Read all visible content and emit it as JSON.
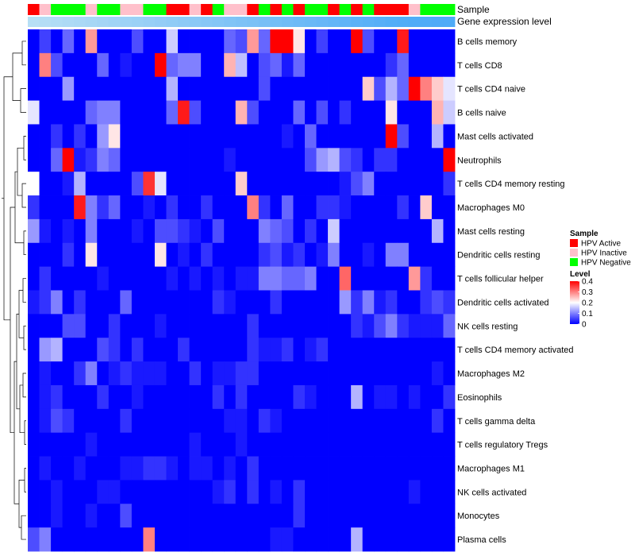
{
  "chart_data": {
    "type": "heatmap",
    "annotation_tracks": [
      "Sample",
      "Gene expression level"
    ],
    "rows": [
      "B cells memory",
      "T cells CD8",
      "T cells CD4 naive",
      "B cells naive",
      "Mast cells activated",
      "Neutrophils",
      "T cells CD4 memory resting",
      "Macrophages M0",
      "Mast cells resting",
      "Dendritic cells resting",
      "T cells follicular helper",
      "Dendritic cells activated",
      "NK cells resting",
      "T cells CD4 memory activated",
      "Macrophages M2",
      "Eosinophils",
      "T cells gamma delta",
      "T cells regulatory  Tregs",
      "Macrophages M1",
      "NK cells activated",
      "Monocytes",
      "Plasma cells"
    ],
    "sample_groups": [
      "HPV Active",
      "HPV Inactive",
      "HPV Negative",
      "HPV Negative",
      "HPV Negative",
      "HPV Inactive",
      "HPV Negative",
      "HPV Negative",
      "HPV Inactive",
      "HPV Inactive",
      "HPV Negative",
      "HPV Negative",
      "HPV Active",
      "HPV Active",
      "HPV Inactive",
      "HPV Active",
      "HPV Negative",
      "HPV Inactive",
      "HPV Inactive",
      "HPV Active",
      "HPV Negative",
      "HPV Active",
      "HPV Negative",
      "HPV Active",
      "HPV Negative",
      "HPV Negative",
      "HPV Active",
      "HPV Negative",
      "HPV Active",
      "HPV Negative",
      "HPV Active",
      "HPV Active",
      "HPV Active",
      "HPV Inactive",
      "HPV Negative",
      "HPV Negative",
      "HPV Negative"
    ],
    "gene_expression_levels": [
      0.02,
      0.05,
      0.08,
      0.11,
      0.14,
      0.17,
      0.2,
      0.23,
      0.26,
      0.29,
      0.32,
      0.35,
      0.38,
      0.41,
      0.44,
      0.47,
      0.5,
      0.53,
      0.56,
      0.59,
      0.62,
      0.65,
      0.68,
      0.71,
      0.74,
      0.77,
      0.8,
      0.83,
      0.86,
      0.89,
      0.92,
      0.95,
      0.97,
      0.98,
      0.99,
      1.0,
      1.0
    ],
    "values": [
      [
        0.0,
        0.05,
        0.0,
        0.08,
        0.0,
        0.28,
        0.0,
        0.0,
        0.0,
        0.06,
        0.0,
        0.0,
        0.16,
        0.0,
        0.0,
        0.0,
        0.0,
        0.08,
        0.06,
        0.28,
        0.08,
        0.4,
        0.4,
        0.22,
        0.0,
        0.05,
        0.0,
        0.0,
        0.4,
        0.06,
        0.0,
        0.0,
        0.38,
        0.0,
        0.0,
        0.0,
        0.0
      ],
      [
        0.0,
        0.3,
        0.06,
        0.0,
        0.0,
        0.0,
        0.08,
        0.0,
        0.02,
        0.0,
        0.0,
        0.4,
        0.08,
        0.1,
        0.1,
        0.0,
        0.0,
        0.26,
        0.15,
        0.0,
        0.06,
        0.08,
        0.02,
        0.08,
        0.0,
        0.0,
        0.0,
        0.0,
        0.0,
        0.0,
        0.0,
        0.04,
        0.08,
        0.0,
        0.0,
        0.0,
        0.0
      ],
      [
        0.0,
        0.0,
        0.0,
        0.12,
        0.0,
        0.0,
        0.0,
        0.0,
        0.0,
        0.0,
        0.0,
        0.0,
        0.14,
        0.0,
        0.0,
        0.0,
        0.0,
        0.0,
        0.0,
        0.0,
        0.06,
        0.0,
        0.0,
        0.0,
        0.0,
        0.0,
        0.0,
        0.0,
        0.0,
        0.24,
        0.06,
        0.14,
        0.08,
        0.4,
        0.3,
        0.24,
        0.18
      ],
      [
        0.18,
        0.0,
        0.0,
        0.0,
        0.0,
        0.08,
        0.1,
        0.1,
        0.0,
        0.0,
        0.0,
        0.0,
        0.08,
        0.38,
        0.06,
        0.0,
        0.0,
        0.0,
        0.26,
        0.06,
        0.0,
        0.0,
        0.0,
        0.08,
        0.0,
        0.06,
        0.0,
        0.04,
        0.0,
        0.0,
        0.0,
        0.22,
        0.0,
        0.0,
        0.0,
        0.26,
        0.16
      ],
      [
        0.0,
        0.0,
        0.04,
        0.0,
        0.04,
        0.0,
        0.12,
        0.22,
        0.0,
        0.0,
        0.0,
        0.0,
        0.0,
        0.0,
        0.0,
        0.0,
        0.0,
        0.0,
        0.0,
        0.0,
        0.0,
        0.0,
        0.02,
        0.0,
        0.08,
        0.0,
        0.0,
        0.0,
        0.0,
        0.0,
        0.0,
        0.4,
        0.06,
        0.0,
        0.0,
        0.14,
        0.0
      ],
      [
        0.0,
        0.0,
        0.08,
        0.4,
        0.02,
        0.04,
        0.1,
        0.08,
        0.0,
        0.0,
        0.0,
        0.0,
        0.0,
        0.0,
        0.0,
        0.0,
        0.0,
        0.02,
        0.0,
        0.0,
        0.0,
        0.0,
        0.0,
        0.0,
        0.06,
        0.12,
        0.14,
        0.06,
        0.04,
        0.0,
        0.04,
        0.04,
        0.0,
        0.0,
        0.0,
        0.0,
        0.4
      ],
      [
        0.2,
        0.0,
        0.0,
        0.02,
        0.14,
        0.0,
        0.0,
        0.0,
        0.0,
        0.06,
        0.36,
        0.18,
        0.0,
        0.0,
        0.0,
        0.0,
        0.0,
        0.0,
        0.24,
        0.0,
        0.0,
        0.0,
        0.0,
        0.0,
        0.0,
        0.0,
        0.0,
        0.02,
        0.06,
        0.1,
        0.0,
        0.0,
        0.0,
        0.0,
        0.0,
        0.0,
        0.04
      ],
      [
        0.04,
        0.0,
        0.0,
        0.0,
        0.38,
        0.1,
        0.04,
        0.08,
        0.0,
        0.0,
        0.02,
        0.0,
        0.04,
        0.0,
        0.0,
        0.04,
        0.0,
        0.0,
        0.0,
        0.3,
        0.04,
        0.0,
        0.08,
        0.0,
        0.0,
        0.04,
        0.04,
        0.02,
        0.0,
        0.0,
        0.0,
        0.0,
        0.04,
        0.0,
        0.24,
        0.0,
        0.0
      ],
      [
        0.12,
        0.02,
        0.0,
        0.02,
        0.0,
        0.1,
        0.0,
        0.0,
        0.0,
        0.02,
        0.0,
        0.06,
        0.06,
        0.04,
        0.02,
        0.0,
        0.06,
        0.0,
        0.0,
        0.0,
        0.1,
        0.08,
        0.06,
        0.0,
        0.04,
        0.0,
        0.16,
        0.0,
        0.0,
        0.0,
        0.0,
        0.0,
        0.0,
        0.0,
        0.0,
        0.14,
        0.0
      ],
      [
        0.0,
        0.0,
        0.0,
        0.04,
        0.0,
        0.22,
        0.0,
        0.0,
        0.0,
        0.0,
        0.0,
        0.22,
        0.0,
        0.02,
        0.0,
        0.04,
        0.0,
        0.0,
        0.0,
        0.0,
        0.04,
        0.06,
        0.02,
        0.04,
        0.0,
        0.02,
        0.1,
        0.0,
        0.0,
        0.02,
        0.0,
        0.1,
        0.1,
        0.0,
        0.0,
        0.0,
        0.0
      ],
      [
        0.0,
        0.04,
        0.0,
        0.0,
        0.0,
        0.0,
        0.02,
        0.0,
        0.0,
        0.0,
        0.0,
        0.0,
        0.02,
        0.0,
        0.02,
        0.0,
        0.02,
        0.0,
        0.02,
        0.02,
        0.1,
        0.1,
        0.08,
        0.08,
        0.1,
        0.0,
        0.0,
        0.32,
        0.0,
        0.0,
        0.0,
        0.0,
        0.0,
        0.28,
        0.04,
        0.0,
        0.0
      ],
      [
        0.02,
        0.04,
        0.1,
        0.0,
        0.04,
        0.0,
        0.0,
        0.0,
        0.08,
        0.0,
        0.0,
        0.0,
        0.0,
        0.0,
        0.0,
        0.0,
        0.04,
        0.02,
        0.0,
        0.0,
        0.0,
        0.04,
        0.0,
        0.0,
        0.0,
        0.0,
        0.0,
        0.12,
        0.04,
        0.1,
        0.02,
        0.04,
        0.0,
        0.0,
        0.04,
        0.06,
        0.04
      ],
      [
        0.0,
        0.0,
        0.0,
        0.06,
        0.06,
        0.0,
        0.0,
        0.04,
        0.0,
        0.0,
        0.0,
        0.02,
        0.0,
        0.0,
        0.0,
        0.0,
        0.0,
        0.0,
        0.0,
        0.04,
        0.0,
        0.0,
        0.0,
        0.0,
        0.0,
        0.0,
        0.0,
        0.0,
        0.04,
        0.02,
        0.06,
        0.1,
        0.04,
        0.02,
        0.02,
        0.02,
        0.08
      ],
      [
        0.0,
        0.12,
        0.14,
        0.0,
        0.0,
        0.0,
        0.06,
        0.04,
        0.0,
        0.04,
        0.0,
        0.0,
        0.0,
        0.04,
        0.0,
        0.0,
        0.0,
        0.0,
        0.0,
        0.04,
        0.02,
        0.02,
        0.04,
        0.0,
        0.02,
        0.04,
        0.0,
        0.0,
        0.0,
        0.0,
        0.0,
        0.0,
        0.0,
        0.0,
        0.0,
        0.0,
        0.0
      ],
      [
        0.0,
        0.02,
        0.0,
        0.0,
        0.04,
        0.1,
        0.0,
        0.02,
        0.04,
        0.02,
        0.02,
        0.02,
        0.0,
        0.0,
        0.04,
        0.0,
        0.02,
        0.02,
        0.04,
        0.04,
        0.0,
        0.0,
        0.0,
        0.0,
        0.0,
        0.0,
        0.0,
        0.0,
        0.0,
        0.0,
        0.0,
        0.0,
        0.0,
        0.0,
        0.0,
        0.02,
        0.0
      ],
      [
        0.0,
        0.02,
        0.04,
        0.0,
        0.0,
        0.0,
        0.04,
        0.0,
        0.0,
        0.02,
        0.0,
        0.0,
        0.0,
        0.0,
        0.0,
        0.0,
        0.04,
        0.0,
        0.04,
        0.0,
        0.0,
        0.0,
        0.0,
        0.04,
        0.02,
        0.0,
        0.0,
        0.0,
        0.14,
        0.0,
        0.02,
        0.02,
        0.0,
        0.02,
        0.0,
        0.0,
        0.04
      ],
      [
        0.0,
        0.02,
        0.06,
        0.04,
        0.0,
        0.0,
        0.0,
        0.0,
        0.04,
        0.0,
        0.0,
        0.0,
        0.0,
        0.0,
        0.0,
        0.0,
        0.0,
        0.02,
        0.02,
        0.0,
        0.04,
        0.02,
        0.0,
        0.0,
        0.0,
        0.0,
        0.0,
        0.0,
        0.0,
        0.0,
        0.0,
        0.0,
        0.0,
        0.0,
        0.0,
        0.04,
        0.0
      ],
      [
        0.0,
        0.0,
        0.0,
        0.0,
        0.0,
        0.02,
        0.0,
        0.0,
        0.0,
        0.0,
        0.0,
        0.0,
        0.0,
        0.0,
        0.02,
        0.0,
        0.0,
        0.0,
        0.02,
        0.0,
        0.0,
        0.0,
        0.0,
        0.0,
        0.0,
        0.0,
        0.0,
        0.0,
        0.0,
        0.0,
        0.0,
        0.0,
        0.0,
        0.0,
        0.0,
        0.0,
        0.0
      ],
      [
        0.0,
        0.02,
        0.0,
        0.0,
        0.02,
        0.0,
        0.0,
        0.0,
        0.02,
        0.02,
        0.04,
        0.04,
        0.02,
        0.0,
        0.02,
        0.02,
        0.0,
        0.02,
        0.0,
        0.04,
        0.0,
        0.0,
        0.0,
        0.0,
        0.0,
        0.0,
        0.0,
        0.0,
        0.0,
        0.0,
        0.0,
        0.0,
        0.0,
        0.0,
        0.0,
        0.0,
        0.0
      ],
      [
        0.0,
        0.0,
        0.02,
        0.0,
        0.0,
        0.0,
        0.02,
        0.02,
        0.0,
        0.0,
        0.0,
        0.0,
        0.0,
        0.0,
        0.0,
        0.0,
        0.02,
        0.04,
        0.0,
        0.04,
        0.0,
        0.02,
        0.0,
        0.04,
        0.0,
        0.0,
        0.0,
        0.0,
        0.0,
        0.0,
        0.0,
        0.0,
        0.0,
        0.02,
        0.0,
        0.0,
        0.0
      ],
      [
        0.0,
        0.0,
        0.02,
        0.0,
        0.0,
        0.02,
        0.0,
        0.0,
        0.06,
        0.0,
        0.0,
        0.0,
        0.0,
        0.0,
        0.0,
        0.0,
        0.0,
        0.0,
        0.0,
        0.0,
        0.0,
        0.0,
        0.0,
        0.04,
        0.0,
        0.0,
        0.0,
        0.0,
        0.0,
        0.0,
        0.0,
        0.0,
        0.0,
        0.0,
        0.0,
        0.0,
        0.0
      ],
      [
        0.06,
        0.1,
        0.0,
        0.0,
        0.0,
        0.0,
        0.0,
        0.0,
        0.0,
        0.0,
        0.3,
        0.0,
        0.0,
        0.0,
        0.0,
        0.0,
        0.0,
        0.0,
        0.0,
        0.0,
        0.0,
        0.02,
        0.02,
        0.0,
        0.0,
        0.0,
        0.0,
        0.0,
        0.14,
        0.0,
        0.0,
        0.0,
        0.0,
        0.0,
        0.0,
        0.0,
        0.0
      ]
    ],
    "color_scale": {
      "low": "#0000ff",
      "mid": "#ffffff",
      "high": "#ff0000",
      "min": 0,
      "mid_value": 0.2,
      "max": 0.4
    },
    "legend_sample": {
      "title": "Sample",
      "items": [
        {
          "label": "HPV Active",
          "color": "#ff0000"
        },
        {
          "label": "HPV Inactive",
          "color": "#ffc0cb"
        },
        {
          "label": "HPV Negative",
          "color": "#00ff00"
        }
      ]
    },
    "legend_level": {
      "title": "Level",
      "ticks": [
        "0.4",
        "0.3",
        "0.2",
        "0.1",
        "0"
      ],
      "tick_values": [
        0.4,
        0.3,
        0.2,
        0.1,
        0
      ]
    },
    "gene_expression_colors": {
      "low": "#b9e0f5",
      "high": "#4eabf7"
    }
  }
}
